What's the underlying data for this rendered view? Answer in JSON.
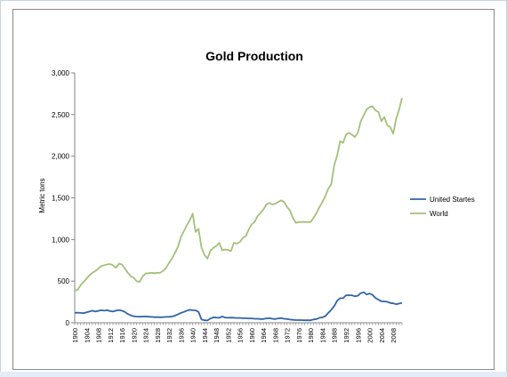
{
  "chart_data": {
    "type": "line",
    "title": "Gold Production",
    "xlabel": "",
    "ylabel": "Metric tons",
    "ylim": [
      0,
      3000
    ],
    "yticks": [
      0,
      500,
      1000,
      1500,
      2000,
      2500,
      3000
    ],
    "ytick_labels": [
      "0",
      "500",
      "1,000",
      "1,500",
      "2,000",
      "2,500",
      "3,000"
    ],
    "xlim": [
      1900,
      2011
    ],
    "xticks": [
      1900,
      1904,
      1908,
      1912,
      1916,
      1920,
      1924,
      1928,
      1932,
      1936,
      1940,
      1944,
      1948,
      1952,
      1956,
      1960,
      1964,
      1968,
      1972,
      1976,
      1980,
      1984,
      1988,
      1992,
      1996,
      2000,
      2004,
      2008
    ],
    "xtick_labels": [
      "1900",
      "1904",
      "1908",
      "1912",
      "1916",
      "1920",
      "1924",
      "1928",
      "1932",
      "1936",
      "1940",
      "1944",
      "1948",
      "1952",
      "1956",
      "1960",
      "1964",
      "1968",
      "1972",
      "1976",
      "1980",
      "1984",
      "1988",
      "1992",
      "1996",
      "2000",
      "2004",
      "2008"
    ],
    "grid": false,
    "legend_position": "right",
    "series": [
      {
        "name": "United Startes",
        "color": "#2e64a8",
        "points": [
          [
            1900,
            120
          ],
          [
            1901,
            122
          ],
          [
            1902,
            118
          ],
          [
            1903,
            115
          ],
          [
            1904,
            125
          ],
          [
            1905,
            135
          ],
          [
            1906,
            145
          ],
          [
            1907,
            135
          ],
          [
            1908,
            143
          ],
          [
            1909,
            150
          ],
          [
            1910,
            145
          ],
          [
            1911,
            150
          ],
          [
            1912,
            140
          ],
          [
            1913,
            135
          ],
          [
            1914,
            145
          ],
          [
            1915,
            152
          ],
          [
            1916,
            145
          ],
          [
            1917,
            130
          ],
          [
            1918,
            105
          ],
          [
            1919,
            90
          ],
          [
            1920,
            78
          ],
          [
            1921,
            75
          ],
          [
            1922,
            73
          ],
          [
            1923,
            75
          ],
          [
            1924,
            76
          ],
          [
            1925,
            73
          ],
          [
            1926,
            70
          ],
          [
            1927,
            67
          ],
          [
            1928,
            68
          ],
          [
            1929,
            66
          ],
          [
            1930,
            68
          ],
          [
            1931,
            70
          ],
          [
            1932,
            72
          ],
          [
            1933,
            75
          ],
          [
            1934,
            85
          ],
          [
            1935,
            100
          ],
          [
            1936,
            118
          ],
          [
            1937,
            130
          ],
          [
            1938,
            145
          ],
          [
            1939,
            155
          ],
          [
            1940,
            150
          ],
          [
            1941,
            148
          ],
          [
            1942,
            130
          ],
          [
            1943,
            40
          ],
          [
            1944,
            30
          ],
          [
            1945,
            28
          ],
          [
            1946,
            50
          ],
          [
            1947,
            65
          ],
          [
            1948,
            62
          ],
          [
            1949,
            60
          ],
          [
            1950,
            75
          ],
          [
            1951,
            62
          ],
          [
            1952,
            60
          ],
          [
            1953,
            62
          ],
          [
            1954,
            60
          ],
          [
            1955,
            58
          ],
          [
            1956,
            58
          ],
          [
            1957,
            55
          ],
          [
            1958,
            54
          ],
          [
            1959,
            52
          ],
          [
            1960,
            52
          ],
          [
            1961,
            48
          ],
          [
            1962,
            48
          ],
          [
            1963,
            45
          ],
          [
            1964,
            45
          ],
          [
            1965,
            52
          ],
          [
            1966,
            55
          ],
          [
            1967,
            48
          ],
          [
            1968,
            45
          ],
          [
            1969,
            52
          ],
          [
            1970,
            55
          ],
          [
            1971,
            48
          ],
          [
            1972,
            45
          ],
          [
            1973,
            38
          ],
          [
            1974,
            35
          ],
          [
            1975,
            32
          ],
          [
            1976,
            32
          ],
          [
            1977,
            32
          ],
          [
            1978,
            30
          ],
          [
            1979,
            30
          ],
          [
            1980,
            30
          ],
          [
            1981,
            40
          ],
          [
            1982,
            45
          ],
          [
            1983,
            60
          ],
          [
            1984,
            65
          ],
          [
            1985,
            80
          ],
          [
            1986,
            118
          ],
          [
            1987,
            155
          ],
          [
            1988,
            200
          ],
          [
            1989,
            265
          ],
          [
            1990,
            295
          ],
          [
            1991,
            295
          ],
          [
            1992,
            330
          ],
          [
            1993,
            330
          ],
          [
            1994,
            330
          ],
          [
            1995,
            318
          ],
          [
            1996,
            325
          ],
          [
            1997,
            355
          ],
          [
            1998,
            366
          ],
          [
            1999,
            340
          ],
          [
            2000,
            350
          ],
          [
            2001,
            335
          ],
          [
            2002,
            298
          ],
          [
            2003,
            277
          ],
          [
            2004,
            258
          ],
          [
            2005,
            256
          ],
          [
            2006,
            252
          ],
          [
            2007,
            238
          ],
          [
            2008,
            233
          ],
          [
            2009,
            222
          ],
          [
            2010,
            231
          ],
          [
            2011,
            237
          ]
        ]
      },
      {
        "name": "World",
        "color": "#a3c07a",
        "points": [
          [
            1900,
            385
          ],
          [
            1901,
            395
          ],
          [
            1902,
            450
          ],
          [
            1903,
            490
          ],
          [
            1904,
            530
          ],
          [
            1905,
            570
          ],
          [
            1906,
            600
          ],
          [
            1907,
            620
          ],
          [
            1908,
            650
          ],
          [
            1909,
            680
          ],
          [
            1910,
            690
          ],
          [
            1911,
            700
          ],
          [
            1912,
            705
          ],
          [
            1913,
            690
          ],
          [
            1914,
            660
          ],
          [
            1915,
            710
          ],
          [
            1916,
            700
          ],
          [
            1917,
            650
          ],
          [
            1918,
            600
          ],
          [
            1919,
            560
          ],
          [
            1920,
            540
          ],
          [
            1921,
            500
          ],
          [
            1922,
            490
          ],
          [
            1923,
            555
          ],
          [
            1924,
            590
          ],
          [
            1925,
            595
          ],
          [
            1926,
            600
          ],
          [
            1927,
            595
          ],
          [
            1928,
            600
          ],
          [
            1929,
            600
          ],
          [
            1930,
            625
          ],
          [
            1931,
            660
          ],
          [
            1932,
            720
          ],
          [
            1933,
            770
          ],
          [
            1934,
            840
          ],
          [
            1935,
            910
          ],
          [
            1936,
            1030
          ],
          [
            1937,
            1100
          ],
          [
            1938,
            1170
          ],
          [
            1939,
            1230
          ],
          [
            1940,
            1310
          ],
          [
            1941,
            1090
          ],
          [
            1942,
            1130
          ],
          [
            1943,
            900
          ],
          [
            1944,
            815
          ],
          [
            1945,
            770
          ],
          [
            1946,
            860
          ],
          [
            1947,
            900
          ],
          [
            1948,
            920
          ],
          [
            1949,
            960
          ],
          [
            1950,
            870
          ],
          [
            1951,
            880
          ],
          [
            1952,
            875
          ],
          [
            1953,
            860
          ],
          [
            1954,
            960
          ],
          [
            1955,
            950
          ],
          [
            1956,
            970
          ],
          [
            1957,
            1020
          ],
          [
            1958,
            1040
          ],
          [
            1959,
            1120
          ],
          [
            1960,
            1180
          ],
          [
            1961,
            1210
          ],
          [
            1962,
            1280
          ],
          [
            1963,
            1320
          ],
          [
            1964,
            1360
          ],
          [
            1965,
            1420
          ],
          [
            1966,
            1440
          ],
          [
            1967,
            1420
          ],
          [
            1968,
            1430
          ],
          [
            1969,
            1450
          ],
          [
            1970,
            1470
          ],
          [
            1971,
            1450
          ],
          [
            1972,
            1390
          ],
          [
            1973,
            1350
          ],
          [
            1974,
            1260
          ],
          [
            1975,
            1200
          ],
          [
            1976,
            1210
          ],
          [
            1977,
            1210
          ],
          [
            1978,
            1210
          ],
          [
            1979,
            1210
          ],
          [
            1980,
            1210
          ],
          [
            1981,
            1260
          ],
          [
            1982,
            1320
          ],
          [
            1983,
            1390
          ],
          [
            1984,
            1450
          ],
          [
            1985,
            1520
          ],
          [
            1986,
            1610
          ],
          [
            1987,
            1660
          ],
          [
            1988,
            1890
          ],
          [
            1989,
            2010
          ],
          [
            1990,
            2180
          ],
          [
            1991,
            2160
          ],
          [
            1992,
            2260
          ],
          [
            1993,
            2280
          ],
          [
            1994,
            2260
          ],
          [
            1995,
            2230
          ],
          [
            1996,
            2280
          ],
          [
            1997,
            2420
          ],
          [
            1998,
            2490
          ],
          [
            1999,
            2560
          ],
          [
            2000,
            2590
          ],
          [
            2001,
            2600
          ],
          [
            2002,
            2550
          ],
          [
            2003,
            2530
          ],
          [
            2004,
            2420
          ],
          [
            2005,
            2470
          ],
          [
            2006,
            2370
          ],
          [
            2007,
            2350
          ],
          [
            2008,
            2270
          ],
          [
            2009,
            2450
          ],
          [
            2010,
            2560
          ],
          [
            2011,
            2700
          ]
        ]
      }
    ]
  }
}
